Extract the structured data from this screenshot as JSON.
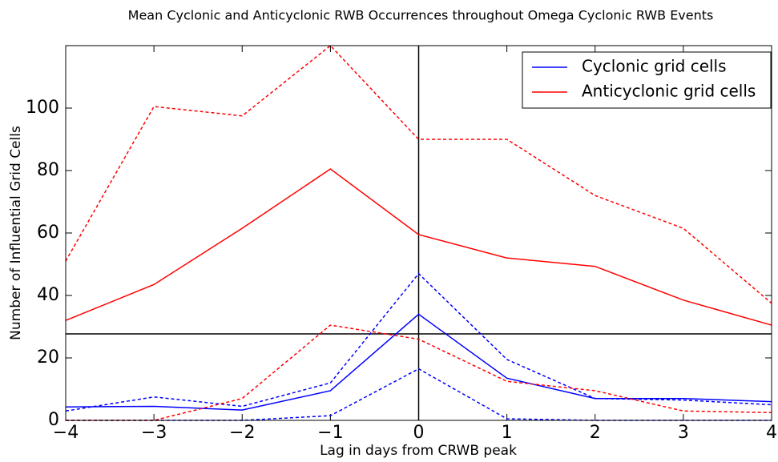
{
  "chart_data": {
    "type": "line",
    "title": "Mean Cyclonic and Anticyclonic RWB Occurrences throughout Omega Cyclonic RWB Events",
    "xlabel": "Lag in days from CRWB peak",
    "ylabel": "Number of Influential Grid Cells",
    "x": [
      -4,
      -3,
      -2,
      -1,
      0,
      1,
      2,
      3,
      4
    ],
    "series": [
      {
        "name": "Cyclonic grid cells",
        "color": "#0000ff",
        "values": [
          4.3,
          4.5,
          3.3,
          9.5,
          34,
          13.5,
          7,
          7,
          6
        ],
        "upper": [
          3,
          7.5,
          4.5,
          12,
          47,
          19.5,
          7,
          6.5,
          5
        ],
        "lower": [
          0,
          0,
          0,
          1.5,
          16.5,
          0.5,
          0,
          0,
          0
        ]
      },
      {
        "name": "Anticyclonic grid cells",
        "color": "#ff0000",
        "values": [
          32,
          43.5,
          61.5,
          80.5,
          59.5,
          52,
          49.3,
          38.5,
          30.5
        ],
        "upper": [
          51,
          100.5,
          97.5,
          120,
          90,
          90,
          72,
          61.5,
          37.5
        ],
        "lower": [
          0,
          0,
          7,
          30.5,
          26,
          12.5,
          9.5,
          3,
          2.5
        ]
      }
    ],
    "hline": 27.7,
    "vline": 0,
    "xlim": [
      -4,
      4
    ],
    "ylim": [
      0,
      120
    ],
    "xticks": [
      {
        "value": -4,
        "label": "−4"
      },
      {
        "value": -3,
        "label": "−3"
      },
      {
        "value": -2,
        "label": "−2"
      },
      {
        "value": -1,
        "label": "−1"
      },
      0,
      1,
      2,
      3,
      4
    ],
    "yticks": [
      0,
      20,
      40,
      60,
      80,
      100
    ],
    "legend": "upper right"
  }
}
